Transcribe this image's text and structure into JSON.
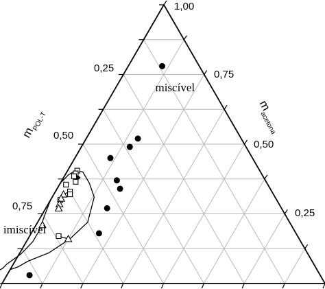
{
  "chart_data": {
    "type": "scatter",
    "subtype": "ternary",
    "grid": true,
    "grid_step": 0.125,
    "axes": {
      "left": {
        "label": "m",
        "label_sub": "POL-T",
        "ticks": [
          {
            "value": 0.25,
            "text": "0,25"
          },
          {
            "value": 0.5,
            "text": "0,50"
          },
          {
            "value": 0.75,
            "text": "0,75"
          }
        ]
      },
      "right": {
        "label": "m",
        "label_sub": "acetona",
        "ticks": [
          {
            "value": 1.0,
            "text": "1,00"
          },
          {
            "value": 0.75,
            "text": "0,75"
          },
          {
            "value": 0.5,
            "text": "0,50"
          },
          {
            "value": 0.25,
            "text": "0,25"
          }
        ]
      }
    },
    "regions": [
      {
        "text": "miscível",
        "at": {
          "pol": 0.12,
          "acetona": 0.69
        }
      },
      {
        "text": "imiscível",
        "at": {
          "pol": 0.84,
          "acetona": 0.18
        }
      }
    ],
    "binodal_curve": [
      {
        "pol": 0.95,
        "acetona": 0.05
      },
      {
        "pol": 0.92,
        "acetona": 0.06
      },
      {
        "pol": 0.88,
        "acetona": 0.08
      },
      {
        "pol": 0.8,
        "acetona": 0.11
      },
      {
        "pol": 0.71,
        "acetona": 0.16
      },
      {
        "pol": 0.625,
        "acetona": 0.22
      },
      {
        "pol": 0.56,
        "acetona": 0.31
      },
      {
        "pol": 0.55,
        "acetona": 0.36
      },
      {
        "pol": 0.55,
        "acetona": 0.4
      },
      {
        "pol": 0.57,
        "acetona": 0.405
      },
      {
        "pol": 0.6,
        "acetona": 0.39
      },
      {
        "pol": 0.64,
        "acetona": 0.36
      },
      {
        "pol": 0.665,
        "acetona": 0.335
      },
      {
        "pol": 0.7,
        "acetona": 0.3
      },
      {
        "pol": 0.75,
        "acetona": 0.24
      },
      {
        "pol": 0.79,
        "acetona": 0.19
      },
      {
        "pol": 0.83,
        "acetona": 0.15
      },
      {
        "pol": 0.89,
        "acetona": 0.105
      },
      {
        "pol": 0.95,
        "acetona": 0.07
      },
      {
        "pol": 0.97,
        "acetona": 0.055
      },
      {
        "pol": 0.98,
        "acetona": 0.05
      },
      {
        "pol": 0.99,
        "acetona": 0.045
      },
      {
        "pol": 1.0,
        "acetona": 0.04
      }
    ],
    "series": [
      {
        "marker": "circle-filled",
        "points": [
          {
            "pol": 0.115,
            "acetona": 0.78
          },
          {
            "pol": 0.32,
            "acetona": 0.52
          },
          {
            "pol": 0.36,
            "acetona": 0.49
          },
          {
            "pol": 0.44,
            "acetona": 0.45
          },
          {
            "pol": 0.46,
            "acetona": 0.37
          },
          {
            "pol": 0.465,
            "acetona": 0.34
          },
          {
            "pol": 0.54,
            "acetona": 0.27
          },
          {
            "pol": 0.61,
            "acetona": 0.18
          },
          {
            "pol": 0.9,
            "acetona": 0.03
          }
        ]
      },
      {
        "marker": "diamond-filled",
        "points": [
          {
            "pol": 0.58,
            "acetona": 0.38
          }
        ]
      },
      {
        "marker": "square-open",
        "points": [
          {
            "pol": 0.565,
            "acetona": 0.405
          },
          {
            "pol": 0.575,
            "acetona": 0.395
          },
          {
            "pol": 0.585,
            "acetona": 0.385
          },
          {
            "pol": 0.59,
            "acetona": 0.365
          },
          {
            "pol": 0.625,
            "acetona": 0.355
          },
          {
            "pol": 0.625,
            "acetona": 0.33
          },
          {
            "pol": 0.63,
            "acetona": 0.32
          },
          {
            "pol": 0.67,
            "acetona": 0.3
          },
          {
            "pol": 0.74,
            "acetona": 0.17
          }
        ]
      },
      {
        "marker": "triangle-open",
        "points": [
          {
            "pol": 0.65,
            "acetona": 0.32
          },
          {
            "pol": 0.665,
            "acetona": 0.305
          },
          {
            "pol": 0.68,
            "acetona": 0.285
          },
          {
            "pol": 0.69,
            "acetona": 0.27
          },
          {
            "pol": 0.715,
            "acetona": 0.16
          },
          {
            "pol": 0.77,
            "acetona": 0.21
          }
        ]
      }
    ],
    "tie_lines": [
      [
        {
          "pol": 0.715,
          "acetona": 0.16
        },
        {
          "pol": 0.74,
          "acetona": 0.17
        }
      ],
      [
        {
          "pol": 0.69,
          "acetona": 0.27
        },
        {
          "pol": 0.665,
          "acetona": 0.305
        }
      ],
      [
        {
          "pol": 0.65,
          "acetona": 0.32
        },
        {
          "pol": 0.625,
          "acetona": 0.33
        }
      ]
    ]
  }
}
